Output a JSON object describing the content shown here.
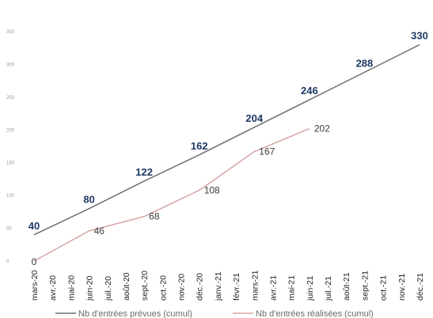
{
  "chart_data": {
    "type": "line",
    "categories": [
      "mars-20",
      "avr.-20",
      "mai-20",
      "juin-20",
      "juil.-20",
      "août-20",
      "sept.-20",
      "oct.-20",
      "nov.-20",
      "déc.-20",
      "janv.-21",
      "févr.-21",
      "mars-21",
      "avr.-21",
      "mai-21",
      "juin-21",
      "juil.-21",
      "août-21",
      "sept.-21",
      "oct.-21",
      "nov.-21",
      "déc.-21"
    ],
    "y_ticks": [
      "350",
      "300",
      "250",
      "200",
      "150",
      "100",
      "50",
      "0"
    ],
    "ylim": [
      0,
      350
    ],
    "grid": false,
    "legend_position": "bottom",
    "series": [
      {
        "name": "Nb d'entrées prévues (cumul)",
        "color": "#6f6f6f",
        "label_color": "#1f3864",
        "points": [
          {
            "category": "mars-20",
            "value": 40,
            "label": "40"
          },
          {
            "category": "juin-20",
            "value": 80,
            "label": "80"
          },
          {
            "category": "sept.-20",
            "value": 122,
            "label": "122"
          },
          {
            "category": "déc.-20",
            "value": 162,
            "label": "162"
          },
          {
            "category": "mars-21",
            "value": 204,
            "label": "204"
          },
          {
            "category": "juin-21",
            "value": 246,
            "label": "246"
          },
          {
            "category": "sept.-21",
            "value": 288,
            "label": "288"
          },
          {
            "category": "déc.-21",
            "value": 330,
            "label": "330"
          }
        ]
      },
      {
        "name": "Nb d'entrées réalisées (cumul)",
        "color": "#d4a5a5",
        "label_color": "#3a3a3a",
        "points": [
          {
            "category": "mars-20",
            "value": 0,
            "label": "0"
          },
          {
            "category": "juin-20",
            "value": 46,
            "label": "46"
          },
          {
            "category": "sept.-20",
            "value": 68,
            "label": "68"
          },
          {
            "category": "déc.-20",
            "value": 108,
            "label": "108"
          },
          {
            "category": "mars-21",
            "value": 167,
            "label": "167"
          },
          {
            "category": "juin-21",
            "value": 202,
            "label": "202"
          }
        ]
      }
    ]
  }
}
